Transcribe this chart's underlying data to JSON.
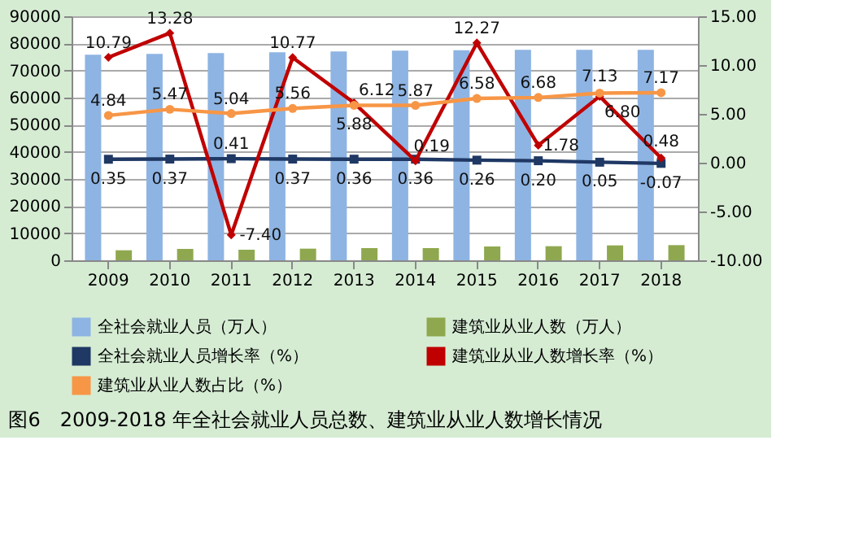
{
  "chart_data": {
    "type": "bar",
    "title": "图6　2009-2018 年全社会就业人员总数、建筑业从业人数增长情况",
    "categories": [
      "2009",
      "2010",
      "2011",
      "2012",
      "2013",
      "2014",
      "2015",
      "2016",
      "2017",
      "2018"
    ],
    "series": [
      {
        "name": "全社会就业人员（万人）",
        "color": "#8eb4e3",
        "values": [
          75800,
          76100,
          76400,
          76700,
          77000,
          77300,
          77500,
          77600,
          77600,
          77600
        ]
      },
      {
        "name": "建筑业从业人数（万人）",
        "color": "#8fa84f",
        "values": [
          3700,
          4200,
          3900,
          4300,
          4500,
          4500,
          5100,
          5200,
          5500,
          5600
        ]
      },
      {
        "name": "全社会就业人员增长率（%）",
        "type": "line",
        "axis": "y2",
        "color": "#1f3864",
        "marker": "square",
        "values": [
          0.35,
          0.37,
          0.41,
          0.37,
          0.36,
          0.36,
          0.26,
          0.2,
          0.05,
          -0.07
        ],
        "value_labels": [
          "0.35",
          "0.37",
          "0.41",
          "0.37",
          "0.36",
          "0.36",
          "0.26",
          "0.20",
          "0.05",
          "-0.07"
        ]
      },
      {
        "name": "建筑业从业人数增长率（%）",
        "type": "line",
        "axis": "y2",
        "color": "#c00000",
        "marker": "diamond",
        "values": [
          10.79,
          13.28,
          -7.4,
          10.77,
          6.12,
          0.19,
          12.27,
          1.78,
          6.8,
          0.48
        ],
        "value_labels": [
          "10.79",
          "13.28",
          "-7.40",
          "10.77",
          "6.12",
          "0.19",
          "12.27",
          "1.78",
          "6.80",
          "0.48"
        ]
      },
      {
        "name": "建筑业从业人数占比（%）",
        "type": "line",
        "axis": "y2",
        "color": "#f79646",
        "marker": "circle",
        "values": [
          4.84,
          5.47,
          5.04,
          5.56,
          5.88,
          5.87,
          6.58,
          6.68,
          7.13,
          7.17
        ],
        "value_labels": [
          "4.84",
          "5.47",
          "5.04",
          "5.56",
          "5.88",
          "5.87",
          "6.58",
          "6.68",
          "7.13",
          "7.17"
        ]
      }
    ],
    "ylim": [
      0,
      90000
    ],
    "yticks": [
      0,
      10000,
      20000,
      30000,
      40000,
      50000,
      60000,
      70000,
      80000,
      90000
    ],
    "y2lim": [
      -10,
      15
    ],
    "y2ticks": [
      {
        "value": -10,
        "label": "-10.00"
      },
      {
        "value": -5,
        "label": "-5.00"
      },
      {
        "value": 0,
        "label": "0.00"
      },
      {
        "value": 5,
        "label": "5.00"
      },
      {
        "value": 10,
        "label": "10.00"
      },
      {
        "value": 15,
        "label": "15.00"
      }
    ],
    "grid": "y",
    "legend": "bottom"
  }
}
